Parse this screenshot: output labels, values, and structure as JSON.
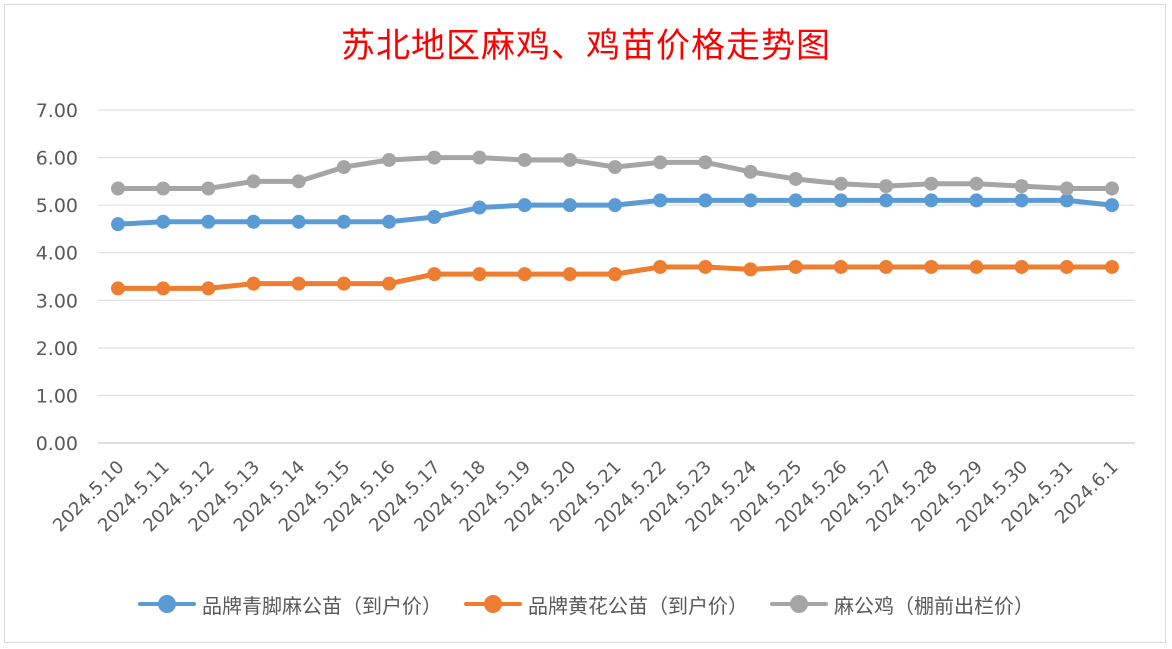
{
  "title": "苏北地区麻鸡、鸡苗价格走势图",
  "chart_data": {
    "type": "line",
    "title": "苏北地区麻鸡、鸡苗价格走势图",
    "xlabel": "",
    "ylabel": "",
    "ylim": [
      0,
      7
    ],
    "yticks": [
      "0.00",
      "1.00",
      "2.00",
      "3.00",
      "4.00",
      "5.00",
      "6.00",
      "7.00"
    ],
    "grid": true,
    "legend_position": "bottom",
    "categories": [
      "2024.5.10",
      "2024.5.11",
      "2024.5.12",
      "2024.5.13",
      "2024.5.14",
      "2024.5.15",
      "2024.5.16",
      "2024.5.17",
      "2024.5.18",
      "2024.5.19",
      "2024.5.20",
      "2024.5.21",
      "2024.5.22",
      "2024.5.23",
      "2024.5.24",
      "2024.5.25",
      "2024.5.26",
      "2024.5.27",
      "2024.5.28",
      "2024.5.29",
      "2024.5.30",
      "2024.5.31",
      "2024.6.1"
    ],
    "series": [
      {
        "name": "品牌青脚麻公苗（到户价）",
        "color": "#5b9bd5",
        "values": [
          4.6,
          4.65,
          4.65,
          4.65,
          4.65,
          4.65,
          4.65,
          4.75,
          4.95,
          5.0,
          5.0,
          5.0,
          5.1,
          5.1,
          5.1,
          5.1,
          5.1,
          5.1,
          5.1,
          5.1,
          5.1,
          5.1,
          5.0
        ]
      },
      {
        "name": "品牌黄花公苗（到户价）",
        "color": "#ed7d31",
        "values": [
          3.25,
          3.25,
          3.25,
          3.35,
          3.35,
          3.35,
          3.35,
          3.55,
          3.55,
          3.55,
          3.55,
          3.55,
          3.7,
          3.7,
          3.65,
          3.7,
          3.7,
          3.7,
          3.7,
          3.7,
          3.7,
          3.7,
          3.7
        ]
      },
      {
        "name": "麻公鸡（棚前出栏价）",
        "color": "#a5a5a5",
        "values": [
          5.35,
          5.35,
          5.35,
          5.5,
          5.5,
          5.8,
          5.95,
          6.0,
          6.0,
          5.95,
          5.95,
          5.8,
          5.9,
          5.9,
          5.7,
          5.55,
          5.45,
          5.4,
          5.45,
          5.45,
          5.4,
          5.35,
          5.35
        ]
      }
    ]
  }
}
